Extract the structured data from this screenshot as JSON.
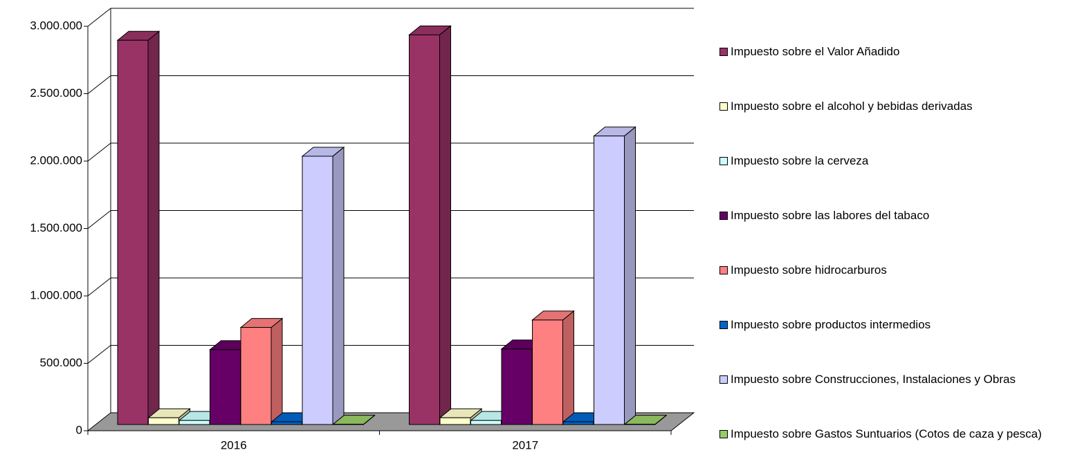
{
  "chart_data": {
    "type": "bar3d",
    "categories": [
      "2016",
      "2017"
    ],
    "series": [
      {
        "name": "Impuesto sobre el Valor Añadido",
        "color": "#993366",
        "values": [
          2850000,
          2890000
        ]
      },
      {
        "name": "Impuesto sobre el alcohol y bebidas derivadas",
        "color": "#ffffcc",
        "values": [
          50000,
          50000
        ]
      },
      {
        "name": "Impuesto sobre la cerveza",
        "color": "#ccffff",
        "values": [
          30000,
          30000
        ]
      },
      {
        "name": "Impuesto sobre las labores del tabaco",
        "color": "#660066",
        "values": [
          555000,
          560000
        ]
      },
      {
        "name": "Impuesto sobre hidrocarburos",
        "color": "#ff8080",
        "values": [
          720000,
          775000
        ]
      },
      {
        "name": "Impuesto sobre productos intermedios",
        "color": "#0066cc",
        "values": [
          20000,
          20000
        ]
      },
      {
        "name": "Impuesto sobre Construcciones, Instalaciones y Obras",
        "color": "#ccccff",
        "values": [
          1990000,
          2140000
        ]
      },
      {
        "name": "Impuesto sobre Gastos Suntuarios (Cotos de caza y pesca)",
        "color": "#99cc66",
        "values": [
          2000,
          2000
        ]
      }
    ],
    "ylim": [
      0,
      3000000
    ],
    "yticks": [
      0,
      {
        "value": 500000,
        "label": "500.000"
      },
      {
        "value": 1000000,
        "label": "1.000.000"
      },
      {
        "value": 1500000,
        "label": "1.500.000"
      },
      {
        "value": 2000000,
        "label": "2.000.000"
      },
      {
        "value": 2500000,
        "label": "2.500.000"
      },
      {
        "value": 3000000,
        "label": "3.000.000"
      }
    ],
    "grid": true,
    "legend": "right"
  }
}
